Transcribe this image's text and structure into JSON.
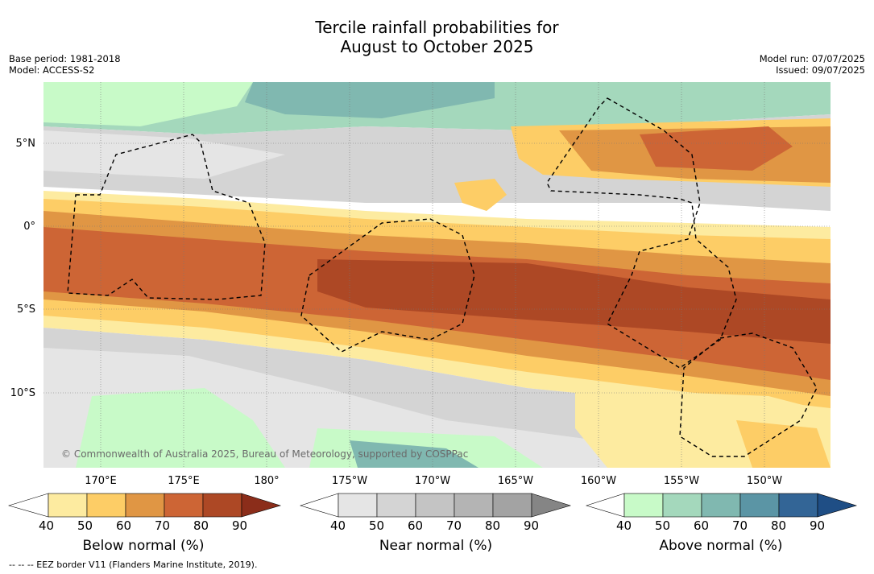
{
  "title_line1": "Tercile rainfall probabilities for",
  "title_line2": "August to October 2025",
  "base_period": "Base period: 1981-2018",
  "model": "Model: ACCESS-S2",
  "model_run": "Model run: 07/07/2025",
  "issued": "Issued: 09/07/2025",
  "lat_labels": [
    "5°N",
    "0°",
    "5°S",
    "10°S"
  ],
  "lon_labels": [
    "170°E",
    "175°E",
    "180°",
    "175°W",
    "170°W",
    "165°W",
    "160°W",
    "155°W",
    "150°W"
  ],
  "copyright": "© Commonwealth of Australia 2025, Bureau of Meteorology, supported by COSPPac",
  "footnote": "--  --  -- EEZ border V11 (Flanders Marine Institute, 2019).",
  "colorbars": [
    {
      "title": "Below normal (%)",
      "ticks": [
        "40",
        "50",
        "60",
        "70",
        "80",
        "90"
      ],
      "colors": [
        "#ffffff",
        "#fdeba0",
        "#fdcd66",
        "#e09644",
        "#cd6535",
        "#ad4825",
        "#8b2d1a"
      ]
    },
    {
      "title": "Near normal (%)",
      "ticks": [
        "40",
        "50",
        "60",
        "70",
        "80",
        "90"
      ],
      "colors": [
        "#ffffff",
        "#e5e5e5",
        "#d4d4d4",
        "#c4c4c4",
        "#b4b4b4",
        "#a3a3a3",
        "#858585"
      ]
    },
    {
      "title": "Above normal (%)",
      "ticks": [
        "40",
        "50",
        "60",
        "70",
        "80",
        "90"
      ],
      "colors": [
        "#ffffff",
        "#c8fac8",
        "#a4d8bc",
        "#80b8b0",
        "#5b95a5",
        "#336596",
        "#1f4e85"
      ]
    }
  ]
}
